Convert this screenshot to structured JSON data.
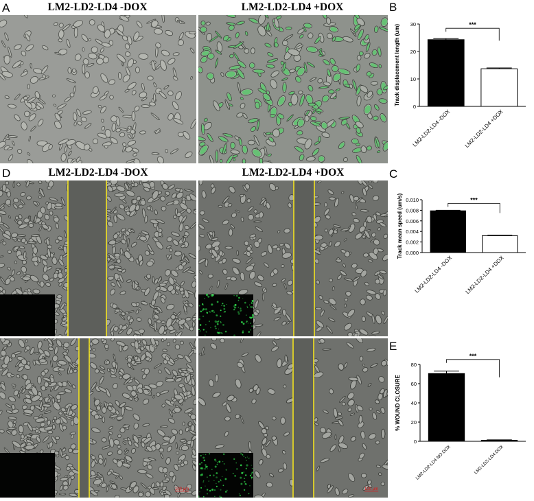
{
  "panels": {
    "a": {
      "letter": "A",
      "left_title": "LM2-LD2-LD4 -DOX",
      "right_title": "LM2-LD2-LD4 +DOX"
    },
    "b": {
      "letter": "B"
    },
    "c": {
      "letter": "C"
    },
    "d": {
      "letter": "D",
      "left_title": "LM2-LD2-LD4  -DOX",
      "right_title": "LM2-LD2-LD4  +DOX"
    },
    "e": {
      "letter": "E"
    }
  },
  "scale_bar_labels": {
    "left": "100 µm",
    "right": "100 µm"
  },
  "colors": {
    "wound_line": "#f2e21e",
    "gfp": "#2fd24a",
    "bar_fill": "#000000",
    "bar_open": "#ffffff"
  },
  "chart_data": [
    {
      "id": "B",
      "type": "bar",
      "categories": [
        "LM2-LD2-LD4 -DOX",
        "LM2-LD2-LD4 +DOX"
      ],
      "values": [
        24.3,
        13.7
      ],
      "errors": [
        0.4,
        0.3
      ],
      "fills": [
        "black",
        "white"
      ],
      "ylabel": "Track displacement length (um)",
      "ylim": [
        0,
        30
      ],
      "yticks": [
        0,
        10,
        20,
        30
      ],
      "significance": "***"
    },
    {
      "id": "C",
      "type": "bar",
      "categories": [
        "LM2-LD2-LD4 -DOX",
        "LM2-LD2-LD4 +DOX"
      ],
      "values": [
        0.0079,
        0.0032
      ],
      "errors": [
        0.0001,
        0.0001
      ],
      "fills": [
        "black",
        "white"
      ],
      "ylabel": "Track mean speed (um/s)",
      "ylim": [
        0,
        0.01
      ],
      "yticks": [
        0.0,
        0.002,
        0.004,
        0.006,
        0.008,
        0.01
      ],
      "ytick_labels": [
        "0.000",
        "0.002",
        "0.004",
        "0.006",
        "0.008",
        "0.010"
      ],
      "significance": "***"
    },
    {
      "id": "E",
      "type": "bar",
      "categories": [
        "LM2-LD2-LD4 NO DOX",
        "LM2-LD2-LD4 DOX"
      ],
      "values": [
        70.5,
        1.0
      ],
      "errors": [
        2.5,
        0.5
      ],
      "fills": [
        "black",
        "black"
      ],
      "ylabel": "% WOUND CLOSURE",
      "ylim": [
        0,
        80
      ],
      "yticks": [
        0,
        20,
        40,
        60,
        80
      ],
      "significance": "***"
    }
  ]
}
